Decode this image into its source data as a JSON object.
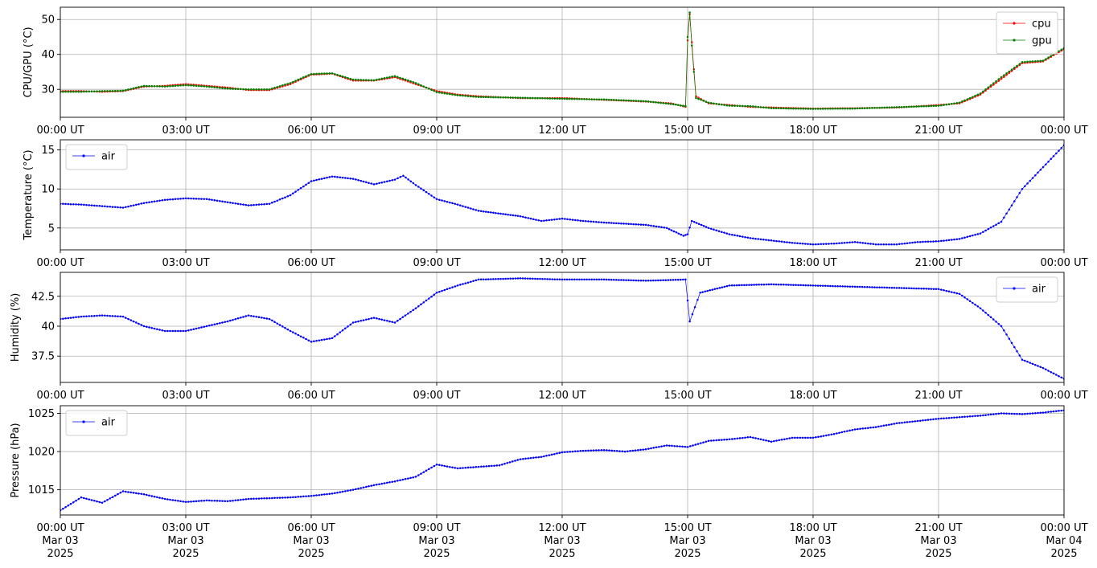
{
  "chart_data": [
    {
      "type": "line",
      "ylabel": "CPU/GPU (°C)",
      "ylim": [
        22,
        53.5
      ],
      "yticks": [
        30,
        40,
        50
      ],
      "xlim": [
        0,
        24
      ],
      "xticklabels": [
        "00:00 UT",
        "03:00 UT",
        "06:00 UT",
        "09:00 UT",
        "12:00 UT",
        "15:00 UT",
        "18:00 UT",
        "21:00 UT",
        "00:00 UT"
      ],
      "grid": true,
      "legend": "top-right",
      "series": [
        {
          "name": "cpu",
          "color": "#ff0000",
          "points": [
            [
              0,
              29.5
            ],
            [
              0.5,
              29.5
            ],
            [
              1,
              29.3
            ],
            [
              1.5,
              29.5
            ],
            [
              2,
              30.8
            ],
            [
              2.5,
              31.0
            ],
            [
              3,
              31.5
            ],
            [
              3.5,
              31.0
            ],
            [
              4,
              30.5
            ],
            [
              4.5,
              29.8
            ],
            [
              5,
              29.8
            ],
            [
              5.5,
              31.5
            ],
            [
              6,
              34.2
            ],
            [
              6.5,
              34.5
            ],
            [
              7,
              32.5
            ],
            [
              7.5,
              32.5
            ],
            [
              8,
              33.5
            ],
            [
              8.5,
              31.5
            ],
            [
              9,
              29.5
            ],
            [
              9.5,
              28.5
            ],
            [
              10,
              28.0
            ],
            [
              11,
              27.5
            ],
            [
              12,
              27.5
            ],
            [
              13,
              27.0
            ],
            [
              14,
              26.5
            ],
            [
              14.6,
              26.0
            ],
            [
              14.95,
              25.0
            ],
            [
              15.0,
              44
            ],
            [
              15.05,
              51.5
            ],
            [
              15.1,
              43.5
            ],
            [
              15.2,
              28.0
            ],
            [
              15.5,
              26.0
            ],
            [
              16,
              25.5
            ],
            [
              16.5,
              25.0
            ],
            [
              17,
              24.8
            ],
            [
              18,
              24.5
            ],
            [
              19,
              24.6
            ],
            [
              20,
              24.8
            ],
            [
              21,
              25.5
            ],
            [
              21.5,
              26.0
            ],
            [
              22,
              28.5
            ],
            [
              22.5,
              33.0
            ],
            [
              23,
              37.5
            ],
            [
              23.5,
              38.0
            ],
            [
              24,
              41.5
            ]
          ]
        },
        {
          "name": "gpu",
          "color": "#008000",
          "points": [
            [
              0,
              29.3
            ],
            [
              0.5,
              29.3
            ],
            [
              1,
              29.5
            ],
            [
              1.5,
              29.6
            ],
            [
              2,
              31.0
            ],
            [
              2.5,
              30.8
            ],
            [
              3,
              31.2
            ],
            [
              3.5,
              30.8
            ],
            [
              4,
              30.2
            ],
            [
              4.5,
              30.0
            ],
            [
              5,
              30.0
            ],
            [
              5.5,
              31.8
            ],
            [
              6,
              34.4
            ],
            [
              6.5,
              34.6
            ],
            [
              7,
              32.8
            ],
            [
              7.5,
              32.6
            ],
            [
              8,
              33.8
            ],
            [
              8.5,
              31.8
            ],
            [
              9,
              29.2
            ],
            [
              9.5,
              28.3
            ],
            [
              10,
              27.8
            ],
            [
              11,
              27.6
            ],
            [
              12,
              27.3
            ],
            [
              13,
              27.1
            ],
            [
              14,
              26.6
            ],
            [
              14.6,
              25.8
            ],
            [
              14.95,
              25.2
            ],
            [
              15.0,
              45
            ],
            [
              15.05,
              52.0
            ],
            [
              15.1,
              42.5
            ],
            [
              15.2,
              27.5
            ],
            [
              15.5,
              26.2
            ],
            [
              16,
              25.3
            ],
            [
              16.5,
              25.2
            ],
            [
              17,
              24.6
            ],
            [
              18,
              24.4
            ],
            [
              19,
              24.5
            ],
            [
              20,
              24.9
            ],
            [
              21,
              25.3
            ],
            [
              21.5,
              26.2
            ],
            [
              22,
              28.8
            ],
            [
              22.5,
              33.5
            ],
            [
              23,
              37.8
            ],
            [
              23.5,
              38.2
            ],
            [
              24,
              41.8
            ]
          ]
        }
      ]
    },
    {
      "type": "line",
      "ylabel": "Temperature (°C)",
      "ylim": [
        2.2,
        16.3
      ],
      "yticks": [
        5,
        10,
        15
      ],
      "xlim": [
        0,
        24
      ],
      "xticklabels": [
        "00:00 UT",
        "03:00 UT",
        "06:00 UT",
        "09:00 UT",
        "12:00 UT",
        "15:00 UT",
        "18:00 UT",
        "21:00 UT",
        "00:00 UT"
      ],
      "grid": true,
      "legend": "top-left",
      "series": [
        {
          "name": "air",
          "color": "#0000ff",
          "points": [
            [
              0,
              8.1
            ],
            [
              0.5,
              8.0
            ],
            [
              1,
              7.8
            ],
            [
              1.5,
              7.6
            ],
            [
              2,
              8.2
            ],
            [
              2.5,
              8.6
            ],
            [
              3,
              8.8
            ],
            [
              3.5,
              8.7
            ],
            [
              4,
              8.3
            ],
            [
              4.5,
              7.9
            ],
            [
              5,
              8.1
            ],
            [
              5.5,
              9.2
            ],
            [
              6,
              11.0
            ],
            [
              6.5,
              11.6
            ],
            [
              7,
              11.3
            ],
            [
              7.5,
              10.6
            ],
            [
              8,
              11.2
            ],
            [
              8.2,
              11.7
            ],
            [
              8.5,
              10.5
            ],
            [
              9,
              8.7
            ],
            [
              9.5,
              8.0
            ],
            [
              10,
              7.2
            ],
            [
              11,
              6.5
            ],
            [
              11.5,
              5.9
            ],
            [
              12,
              6.2
            ],
            [
              12.5,
              5.9
            ],
            [
              13,
              5.7
            ],
            [
              14,
              5.4
            ],
            [
              14.5,
              5.0
            ],
            [
              14.9,
              4.0
            ],
            [
              15,
              4.2
            ],
            [
              15.1,
              5.9
            ],
            [
              15.5,
              5.0
            ],
            [
              16,
              4.2
            ],
            [
              16.5,
              3.7
            ],
            [
              17,
              3.4
            ],
            [
              17.5,
              3.1
            ],
            [
              18,
              2.9
            ],
            [
              18.5,
              3.0
            ],
            [
              19,
              3.2
            ],
            [
              19.5,
              2.9
            ],
            [
              20,
              2.9
            ],
            [
              20.5,
              3.2
            ],
            [
              21,
              3.3
            ],
            [
              21.5,
              3.6
            ],
            [
              22,
              4.3
            ],
            [
              22.5,
              5.8
            ],
            [
              23,
              10.0
            ],
            [
              23.5,
              12.8
            ],
            [
              24,
              15.6
            ]
          ]
        }
      ]
    },
    {
      "type": "line",
      "ylabel": "Humidity (%)",
      "ylim": [
        35.3,
        44.5
      ],
      "yticks": [
        37.5,
        40.0,
        42.5
      ],
      "xlim": [
        0,
        24
      ],
      "xticklabels": [
        "00:00 UT",
        "03:00 UT",
        "06:00 UT",
        "09:00 UT",
        "12:00 UT",
        "15:00 UT",
        "18:00 UT",
        "21:00 UT",
        "00:00 UT"
      ],
      "grid": true,
      "legend": "top-right",
      "series": [
        {
          "name": "air",
          "color": "#0000ff",
          "points": [
            [
              0,
              40.6
            ],
            [
              0.5,
              40.8
            ],
            [
              1,
              40.9
            ],
            [
              1.5,
              40.8
            ],
            [
              2,
              40.0
            ],
            [
              2.5,
              39.6
            ],
            [
              3,
              39.6
            ],
            [
              3.5,
              40.0
            ],
            [
              4,
              40.4
            ],
            [
              4.5,
              40.9
            ],
            [
              5,
              40.6
            ],
            [
              5.5,
              39.6
            ],
            [
              6,
              38.7
            ],
            [
              6.5,
              39.0
            ],
            [
              7,
              40.3
            ],
            [
              7.5,
              40.7
            ],
            [
              8,
              40.3
            ],
            [
              8.5,
              41.5
            ],
            [
              9,
              42.8
            ],
            [
              9.5,
              43.4
            ],
            [
              10,
              43.9
            ],
            [
              11,
              44.0
            ],
            [
              12,
              43.9
            ],
            [
              13,
              43.9
            ],
            [
              14,
              43.8
            ],
            [
              14.95,
              43.9
            ],
            [
              15.05,
              40.4
            ],
            [
              15.3,
              42.8
            ],
            [
              16,
              43.4
            ],
            [
              17,
              43.5
            ],
            [
              18,
              43.4
            ],
            [
              19,
              43.3
            ],
            [
              20,
              43.2
            ],
            [
              21,
              43.1
            ],
            [
              21.5,
              42.7
            ],
            [
              22,
              41.5
            ],
            [
              22.5,
              40.0
            ],
            [
              23,
              37.2
            ],
            [
              23.5,
              36.5
            ],
            [
              24,
              35.6
            ]
          ]
        }
      ]
    },
    {
      "type": "line",
      "ylabel": "Pressure (hPa)",
      "ylim": [
        1011.7,
        1026.0
      ],
      "yticks": [
        1015,
        1020,
        1025
      ],
      "xlim": [
        0,
        24
      ],
      "xticklabels": [
        "00:00 UT\nMar 03\n2025",
        "03:00 UT\nMar 03\n2025",
        "06:00 UT\nMar 03\n2025",
        "09:00 UT\nMar 03\n2025",
        "12:00 UT\nMar 03\n2025",
        "15:00 UT\nMar 03\n2025",
        "18:00 UT\nMar 03\n2025",
        "21:00 UT\nMar 03\n2025",
        "00:00 UT\nMar 04\n2025"
      ],
      "grid": true,
      "legend": "top-left",
      "series": [
        {
          "name": "air",
          "color": "#0000ff",
          "points": [
            [
              0,
              1012.3
            ],
            [
              0.5,
              1014.0
            ],
            [
              1,
              1013.3
            ],
            [
              1.5,
              1014.8
            ],
            [
              2,
              1014.4
            ],
            [
              2.5,
              1013.8
            ],
            [
              3,
              1013.4
            ],
            [
              3.5,
              1013.6
            ],
            [
              4,
              1013.5
            ],
            [
              4.5,
              1013.8
            ],
            [
              5,
              1013.9
            ],
            [
              5.5,
              1014.0
            ],
            [
              6,
              1014.2
            ],
            [
              6.5,
              1014.5
            ],
            [
              7,
              1015.0
            ],
            [
              7.5,
              1015.6
            ],
            [
              8,
              1016.1
            ],
            [
              8.5,
              1016.7
            ],
            [
              9,
              1018.3
            ],
            [
              9.5,
              1017.8
            ],
            [
              10,
              1018.0
            ],
            [
              10.5,
              1018.2
            ],
            [
              11,
              1019.0
            ],
            [
              11.5,
              1019.3
            ],
            [
              12,
              1019.9
            ],
            [
              12.5,
              1020.1
            ],
            [
              13,
              1020.2
            ],
            [
              13.5,
              1020.0
            ],
            [
              14,
              1020.3
            ],
            [
              14.5,
              1020.8
            ],
            [
              15,
              1020.6
            ],
            [
              15.5,
              1021.4
            ],
            [
              16,
              1021.6
            ],
            [
              16.5,
              1021.9
            ],
            [
              17,
              1021.3
            ],
            [
              17.5,
              1021.8
            ],
            [
              18,
              1021.8
            ],
            [
              18.5,
              1022.3
            ],
            [
              19,
              1022.9
            ],
            [
              19.5,
              1023.2
            ],
            [
              20,
              1023.7
            ],
            [
              20.5,
              1024.0
            ],
            [
              21,
              1024.3
            ],
            [
              21.5,
              1024.5
            ],
            [
              22,
              1024.7
            ],
            [
              22.5,
              1025.0
            ],
            [
              23,
              1024.9
            ],
            [
              23.5,
              1025.1
            ],
            [
              24,
              1025.4
            ]
          ]
        }
      ]
    }
  ]
}
